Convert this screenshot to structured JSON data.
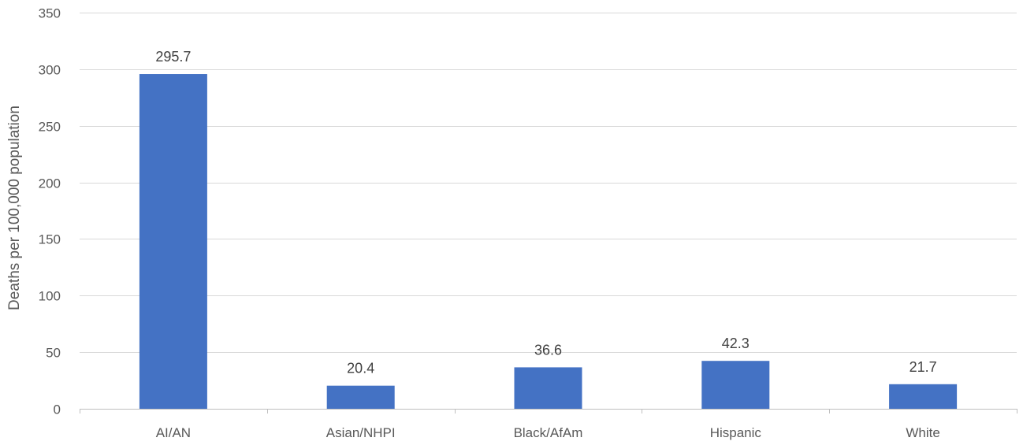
{
  "chart_data": {
    "type": "bar",
    "categories": [
      "AI/AN",
      "Asian/NHPI",
      "Black/AfAm",
      "Hispanic",
      "White"
    ],
    "values": [
      295.7,
      20.4,
      36.6,
      42.3,
      21.7
    ],
    "data_labels": [
      "295.7",
      "20.4",
      "36.6",
      "42.3",
      "21.7"
    ],
    "title": "",
    "xlabel": "",
    "ylabel": "Deaths per 100,000 population",
    "ylim": [
      0,
      350
    ],
    "yticks": [
      0,
      50,
      100,
      150,
      200,
      250,
      300,
      350
    ],
    "grid": true,
    "legend": "none",
    "bar_color": "#4472c4"
  }
}
